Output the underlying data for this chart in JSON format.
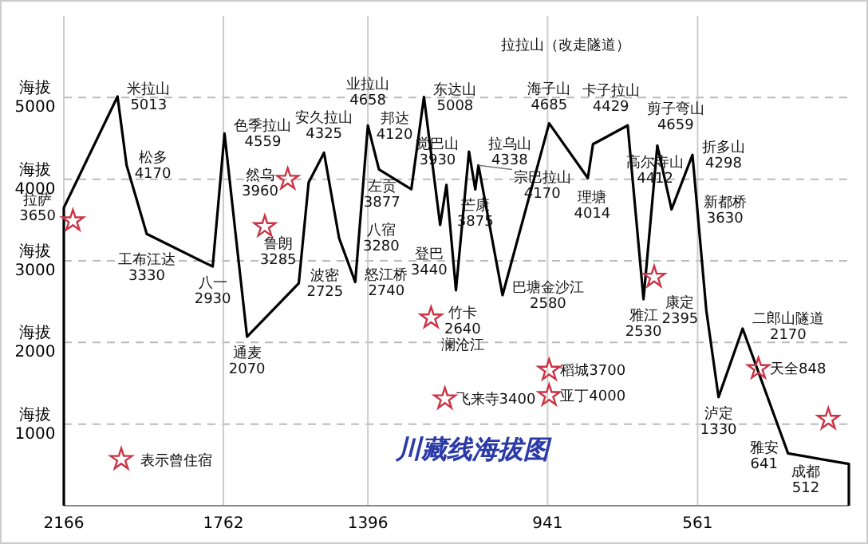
{
  "chart_data": {
    "type": "line",
    "title": "川藏线海拔图",
    "xlim": [
      2166,
      178
    ],
    "xticks": [
      2166,
      1762,
      1396,
      941,
      561
    ],
    "ylim": [
      0,
      6000
    ],
    "yticks": [
      1000,
      2000,
      3000,
      4000,
      5000
    ],
    "ylabel": "海拔",
    "grid": true,
    "legend": "bottom left",
    "line_style": "solid",
    "series": [
      {
        "color": "#000000",
        "x": [
          2166,
          2166,
          2030,
          2007,
          1956,
          1789,
          1759,
          1730,
          1702,
          1571,
          1546,
          1507,
          1469,
          1428,
          1396,
          1368,
          1286,
          1254,
          1213,
          1197,
          1173,
          1140,
          1124,
          1116,
          1055,
          937,
          839,
          826,
          738,
          698,
          663,
          627,
          574,
          539,
          508,
          447,
          332,
          178,
          178
        ],
        "values": [
          0,
          3650,
          5013,
          4170,
          3330,
          2930,
          4559,
          3285,
          2070,
          2725,
          3960,
          4325,
          3280,
          2740,
          4658,
          4120,
          3877,
          5008,
          3440,
          3930,
          2640,
          4338,
          3875,
          4170,
          2580,
          4685,
          4014,
          4429,
          4659,
          2530,
          4412,
          3630,
          4298,
          2395,
          1330,
          2170,
          641,
          512,
          0
        ]
      },
      {
        "type": "scatter",
        "name": "表示曾住宿",
        "color": "#cc3344",
        "marker": "star",
        "x": [
          2143,
          1657,
          1599,
          1236,
          1201,
          937,
          937,
          671,
          407,
          230
        ],
        "values": [
          3490,
          3420,
          4000,
          2300,
          1310,
          1660,
          1350,
          2800,
          1680,
          1060
        ]
      }
    ],
    "annotations": [
      {
        "text": "拉萨\n3650",
        "x": 2166,
        "y": 3650
      },
      {
        "text": "米拉山\n5013",
        "x": 2030,
        "y": 5013
      },
      {
        "text": "松多\n4170",
        "x": 2007,
        "y": 4170
      },
      {
        "text": "工布江达\n3330",
        "x": 1956,
        "y": 3330
      },
      {
        "text": "八一\n2930",
        "x": 1789,
        "y": 2930
      },
      {
        "text": "色季拉山\n4559",
        "x": 1759,
        "y": 4559
      },
      {
        "text": "鲁朗\n3285",
        "x": 1730,
        "y": 3285
      },
      {
        "text": "通麦\n2070",
        "x": 1702,
        "y": 2070
      },
      {
        "text": "波密\n2725",
        "x": 1571,
        "y": 2725
      },
      {
        "text": "然乌\n3960",
        "x": 1546,
        "y": 3960
      },
      {
        "text": "安久拉山\n4325",
        "x": 1507,
        "y": 4325
      },
      {
        "text": "八宿\n3280",
        "x": 1469,
        "y": 3280
      },
      {
        "text": "怒江桥\n2740",
        "x": 1428,
        "y": 2740
      },
      {
        "text": "业拉山\n4658",
        "x": 1396,
        "y": 4658
      },
      {
        "text": "邦达\n4120",
        "x": 1368,
        "y": 4120
      },
      {
        "text": "左贡\n3877",
        "x": 1286,
        "y": 3877
      },
      {
        "text": "东达山\n5008",
        "x": 1254,
        "y": 5008
      },
      {
        "text": "登巴\n3440",
        "x": 1213,
        "y": 3440
      },
      {
        "text": "觉巴山\n3930",
        "x": 1197,
        "y": 3930
      },
      {
        "text": "竹卡\n2640\n澜沧江",
        "x": 1173,
        "y": 2640
      },
      {
        "text": "拉乌山\n4338",
        "x": 1140,
        "y": 4338
      },
      {
        "text": "芒康\n3875",
        "x": 1124,
        "y": 3875
      },
      {
        "text": "宗巴拉山\n4170",
        "x": 1116,
        "y": 4170
      },
      {
        "text": "巴塘金沙江\n2580",
        "x": 1055,
        "y": 2580
      },
      {
        "text": "海子山\n4685",
        "x": 937,
        "y": 4685
      },
      {
        "text": "理塘\n4014",
        "x": 839,
        "y": 4014
      },
      {
        "text": "卡子拉山\n4429",
        "x": 826,
        "y": 4429
      },
      {
        "text": "剪子弯山\n4659",
        "x": 738,
        "y": 4659
      },
      {
        "text": "雅江\n2530",
        "x": 698,
        "y": 2530
      },
      {
        "text": "高尔寺山\n4412",
        "x": 663,
        "y": 4412
      },
      {
        "text": "新都桥\n3630",
        "x": 627,
        "y": 3630
      },
      {
        "text": "折多山\n4298",
        "x": 574,
        "y": 4298
      },
      {
        "text": "康定\n2395",
        "x": 539,
        "y": 2395
      },
      {
        "text": "泸定\n1330",
        "x": 508,
        "y": 1330
      },
      {
        "text": "二郎山隧道\n2170",
        "x": 447,
        "y": 2170
      },
      {
        "text": "雅安\n641",
        "x": 332,
        "y": 641
      },
      {
        "text": "成都\n512",
        "x": 178,
        "y": 512
      },
      {
        "text": "飞来寺3400",
        "x": 1201,
        "y": 1310
      },
      {
        "text": "稻城3700",
        "x": 937,
        "y": 1660
      },
      {
        "text": "亚丁4000",
        "x": 937,
        "y": 1350
      },
      {
        "text": "天全848",
        "x": 407,
        "y": 1680
      },
      "拉拉山（改走隧道）"
    ]
  }
}
